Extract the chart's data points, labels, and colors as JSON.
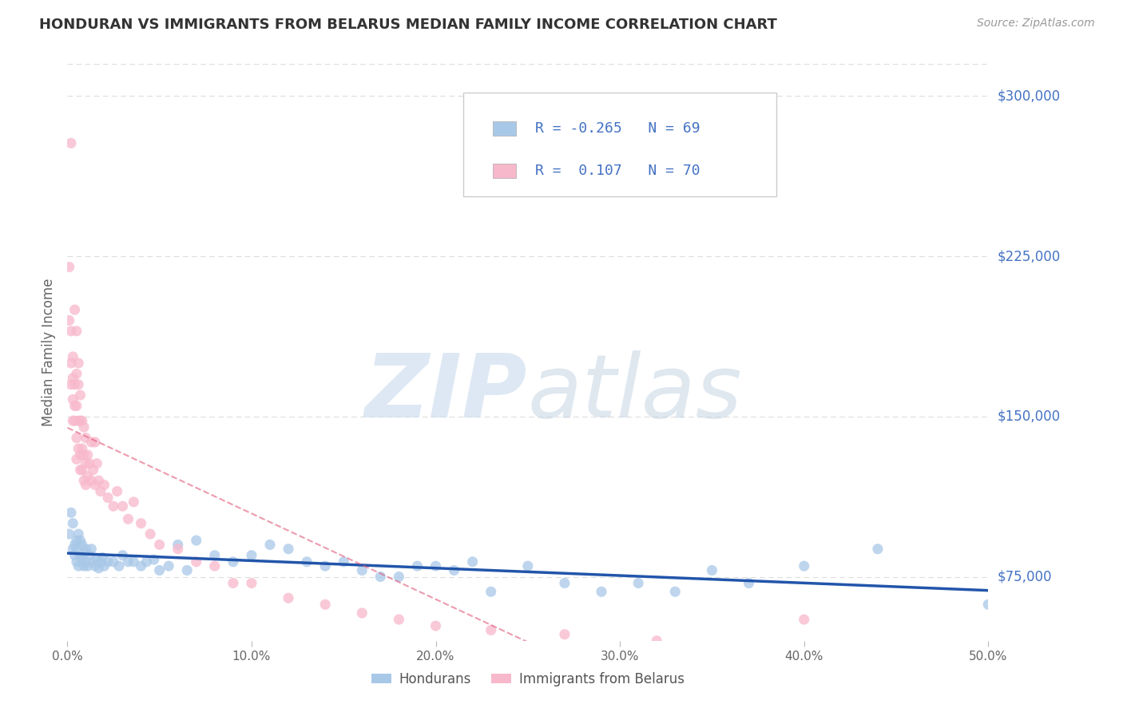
{
  "title": "HONDURAN VS IMMIGRANTS FROM BELARUS MEDIAN FAMILY INCOME CORRELATION CHART",
  "source": "Source: ZipAtlas.com",
  "ylabel": "Median Family Income",
  "watermark_zip": "ZIP",
  "watermark_atlas": "atlas",
  "xlim": [
    0.0,
    0.5
  ],
  "ylim": [
    45000,
    315000
  ],
  "yticks": [
    75000,
    150000,
    225000,
    300000
  ],
  "xticks": [
    0.0,
    0.1,
    0.2,
    0.3,
    0.4,
    0.5
  ],
  "xtick_labels": [
    "0.0%",
    "10.0%",
    "20.0%",
    "30.0%",
    "40.0%",
    "50.0%"
  ],
  "ytick_labels": [
    "$75,000",
    "$150,000",
    "$225,000",
    "$300,000"
  ],
  "series1_name": "Hondurans",
  "series1_color": "#a8c8e8",
  "series1_R": -0.265,
  "series1_N": 69,
  "series1_line_color": "#2255aa",
  "series2_name": "Immigrants from Belarus",
  "series2_color": "#f8b8cc",
  "series2_R": 0.107,
  "series2_N": 70,
  "series2_line_color": "#e05878",
  "background_color": "#ffffff",
  "grid_color": "#dddddd",
  "title_color": "#333333",
  "tick_label_color": "#4472c4",
  "honduran_x": [
    0.001,
    0.002,
    0.003,
    0.003,
    0.004,
    0.004,
    0.005,
    0.005,
    0.005,
    0.006,
    0.006,
    0.007,
    0.007,
    0.008,
    0.008,
    0.009,
    0.009,
    0.01,
    0.01,
    0.011,
    0.012,
    0.013,
    0.014,
    0.015,
    0.016,
    0.017,
    0.018,
    0.019,
    0.02,
    0.022,
    0.025,
    0.028,
    0.03,
    0.033,
    0.036,
    0.04,
    0.043,
    0.047,
    0.05,
    0.055,
    0.06,
    0.065,
    0.07,
    0.08,
    0.09,
    0.1,
    0.11,
    0.12,
    0.13,
    0.14,
    0.15,
    0.16,
    0.17,
    0.18,
    0.19,
    0.2,
    0.21,
    0.22,
    0.23,
    0.25,
    0.27,
    0.29,
    0.31,
    0.33,
    0.35,
    0.37,
    0.4,
    0.44,
    0.5
  ],
  "honduran_y": [
    95000,
    105000,
    88000,
    100000,
    90000,
    85000,
    92000,
    88000,
    82000,
    95000,
    80000,
    92000,
    85000,
    90000,
    83000,
    80000,
    86000,
    88000,
    82000,
    80000,
    85000,
    88000,
    82000,
    80000,
    83000,
    79000,
    82000,
    84000,
    80000,
    82000,
    82000,
    80000,
    85000,
    82000,
    82000,
    80000,
    82000,
    83000,
    78000,
    80000,
    90000,
    78000,
    92000,
    85000,
    82000,
    85000,
    90000,
    88000,
    82000,
    80000,
    82000,
    78000,
    75000,
    75000,
    80000,
    80000,
    78000,
    82000,
    68000,
    80000,
    72000,
    68000,
    72000,
    68000,
    78000,
    72000,
    80000,
    88000,
    62000
  ],
  "belarus_x": [
    0.001,
    0.001,
    0.002,
    0.002,
    0.002,
    0.003,
    0.003,
    0.003,
    0.003,
    0.004,
    0.004,
    0.004,
    0.004,
    0.005,
    0.005,
    0.005,
    0.005,
    0.005,
    0.006,
    0.006,
    0.006,
    0.006,
    0.007,
    0.007,
    0.007,
    0.007,
    0.008,
    0.008,
    0.008,
    0.009,
    0.009,
    0.009,
    0.01,
    0.01,
    0.01,
    0.011,
    0.011,
    0.012,
    0.013,
    0.013,
    0.014,
    0.015,
    0.015,
    0.016,
    0.017,
    0.018,
    0.02,
    0.022,
    0.025,
    0.027,
    0.03,
    0.033,
    0.036,
    0.04,
    0.045,
    0.05,
    0.06,
    0.07,
    0.08,
    0.09,
    0.1,
    0.12,
    0.14,
    0.16,
    0.18,
    0.2,
    0.23,
    0.27,
    0.32,
    0.4
  ],
  "belarus_y": [
    220000,
    195000,
    190000,
    175000,
    165000,
    178000,
    168000,
    158000,
    148000,
    200000,
    165000,
    155000,
    148000,
    190000,
    170000,
    155000,
    140000,
    130000,
    175000,
    165000,
    148000,
    135000,
    160000,
    148000,
    132000,
    125000,
    148000,
    135000,
    125000,
    145000,
    132000,
    120000,
    140000,
    128000,
    118000,
    132000,
    122000,
    128000,
    138000,
    120000,
    125000,
    138000,
    118000,
    128000,
    120000,
    115000,
    118000,
    112000,
    108000,
    115000,
    108000,
    102000,
    110000,
    100000,
    95000,
    90000,
    88000,
    82000,
    80000,
    72000,
    72000,
    65000,
    62000,
    58000,
    55000,
    52000,
    50000,
    48000,
    45000,
    55000
  ],
  "belarus_outlier_x": [
    0.002
  ],
  "belarus_outlier_y": [
    278000
  ]
}
